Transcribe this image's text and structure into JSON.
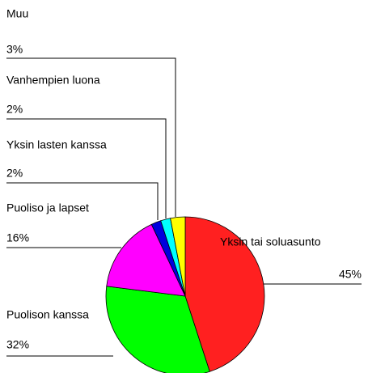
{
  "chart_data": {
    "type": "pie",
    "categories": [
      "Yksin tai soluasunto",
      "Puolison kanssa",
      "Puoliso ja lapset",
      "Yksin lasten kanssa",
      "Vanhempien luona",
      "Muu"
    ],
    "values": [
      45,
      32,
      16,
      2,
      2,
      3
    ],
    "value_labels": [
      "45%",
      "32%",
      "16%",
      "2%",
      "2%",
      "3%"
    ],
    "colors": [
      "#ff2020",
      "#00ff00",
      "#ff00ff",
      "#0000dd",
      "#00ffff",
      "#ffff00"
    ]
  }
}
